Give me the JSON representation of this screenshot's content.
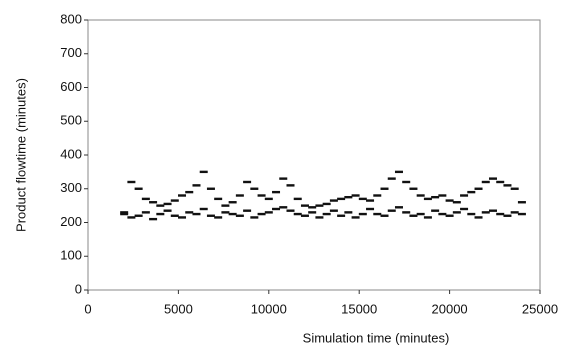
{
  "chart_data": {
    "type": "scatter",
    "xlabel": "Simulation time (minutes)",
    "ylabel": "Product flowtime (minutes)",
    "xlim": [
      0,
      25000
    ],
    "ylim": [
      0,
      800
    ],
    "xticks": [
      0,
      5000,
      10000,
      15000,
      20000,
      25000
    ],
    "yticks": [
      0,
      100,
      200,
      300,
      400,
      500,
      600,
      700,
      800
    ],
    "color": "#111111",
    "x": [
      2000,
      2400,
      2800,
      3200,
      3600,
      4000,
      4400,
      4800,
      5200,
      5600,
      6000,
      6400,
      6800,
      7200,
      7600,
      8000,
      8400,
      8800,
      9200,
      9600,
      10000,
      10400,
      10800,
      11200,
      11600,
      12000,
      12400,
      12800,
      13200,
      13600,
      14000,
      14400,
      14800,
      15200,
      15600,
      16000,
      16400,
      16800,
      17200,
      17600,
      18000,
      18400,
      18800,
      19200,
      19600,
      20000,
      20400,
      20800,
      21200,
      21600,
      22000,
      22400,
      22800,
      23200,
      23600,
      24000,
      2000,
      2400,
      2800,
      3200,
      3600,
      4000,
      4400,
      4800,
      5200,
      5600,
      6000,
      6400,
      6800,
      7200,
      7600,
      8000,
      8400,
      8800,
      9200,
      9600,
      10000,
      10400,
      10800,
      11200,
      11600,
      12000,
      12400,
      12800,
      13200,
      13600,
      14000,
      14400,
      14800,
      15200,
      15600,
      16000,
      16400,
      16800,
      17200,
      17600,
      18000,
      18400,
      18800,
      19200,
      19600,
      20000,
      20400,
      20800,
      21200,
      21600,
      22000,
      22400,
      22800,
      23200,
      23600,
      24000
    ],
    "values": [
      230,
      320,
      300,
      270,
      260,
      250,
      255,
      265,
      280,
      290,
      310,
      350,
      300,
      270,
      250,
      260,
      280,
      320,
      300,
      280,
      270,
      290,
      330,
      310,
      270,
      250,
      245,
      250,
      255,
      265,
      270,
      275,
      280,
      270,
      265,
      280,
      300,
      330,
      350,
      320,
      300,
      280,
      270,
      275,
      280,
      265,
      260,
      280,
      290,
      300,
      320,
      330,
      320,
      310,
      300,
      260,
      225,
      215,
      220,
      230,
      210,
      225,
      235,
      220,
      215,
      230,
      225,
      240,
      220,
      215,
      230,
      225,
      220,
      235,
      215,
      225,
      230,
      240,
      245,
      235,
      225,
      220,
      230,
      215,
      225,
      235,
      220,
      230,
      215,
      225,
      240,
      225,
      220,
      235,
      245,
      230,
      220,
      225,
      215,
      235,
      225,
      220,
      230,
      240,
      225,
      215,
      230,
      235,
      225,
      220,
      230,
      225
    ]
  }
}
